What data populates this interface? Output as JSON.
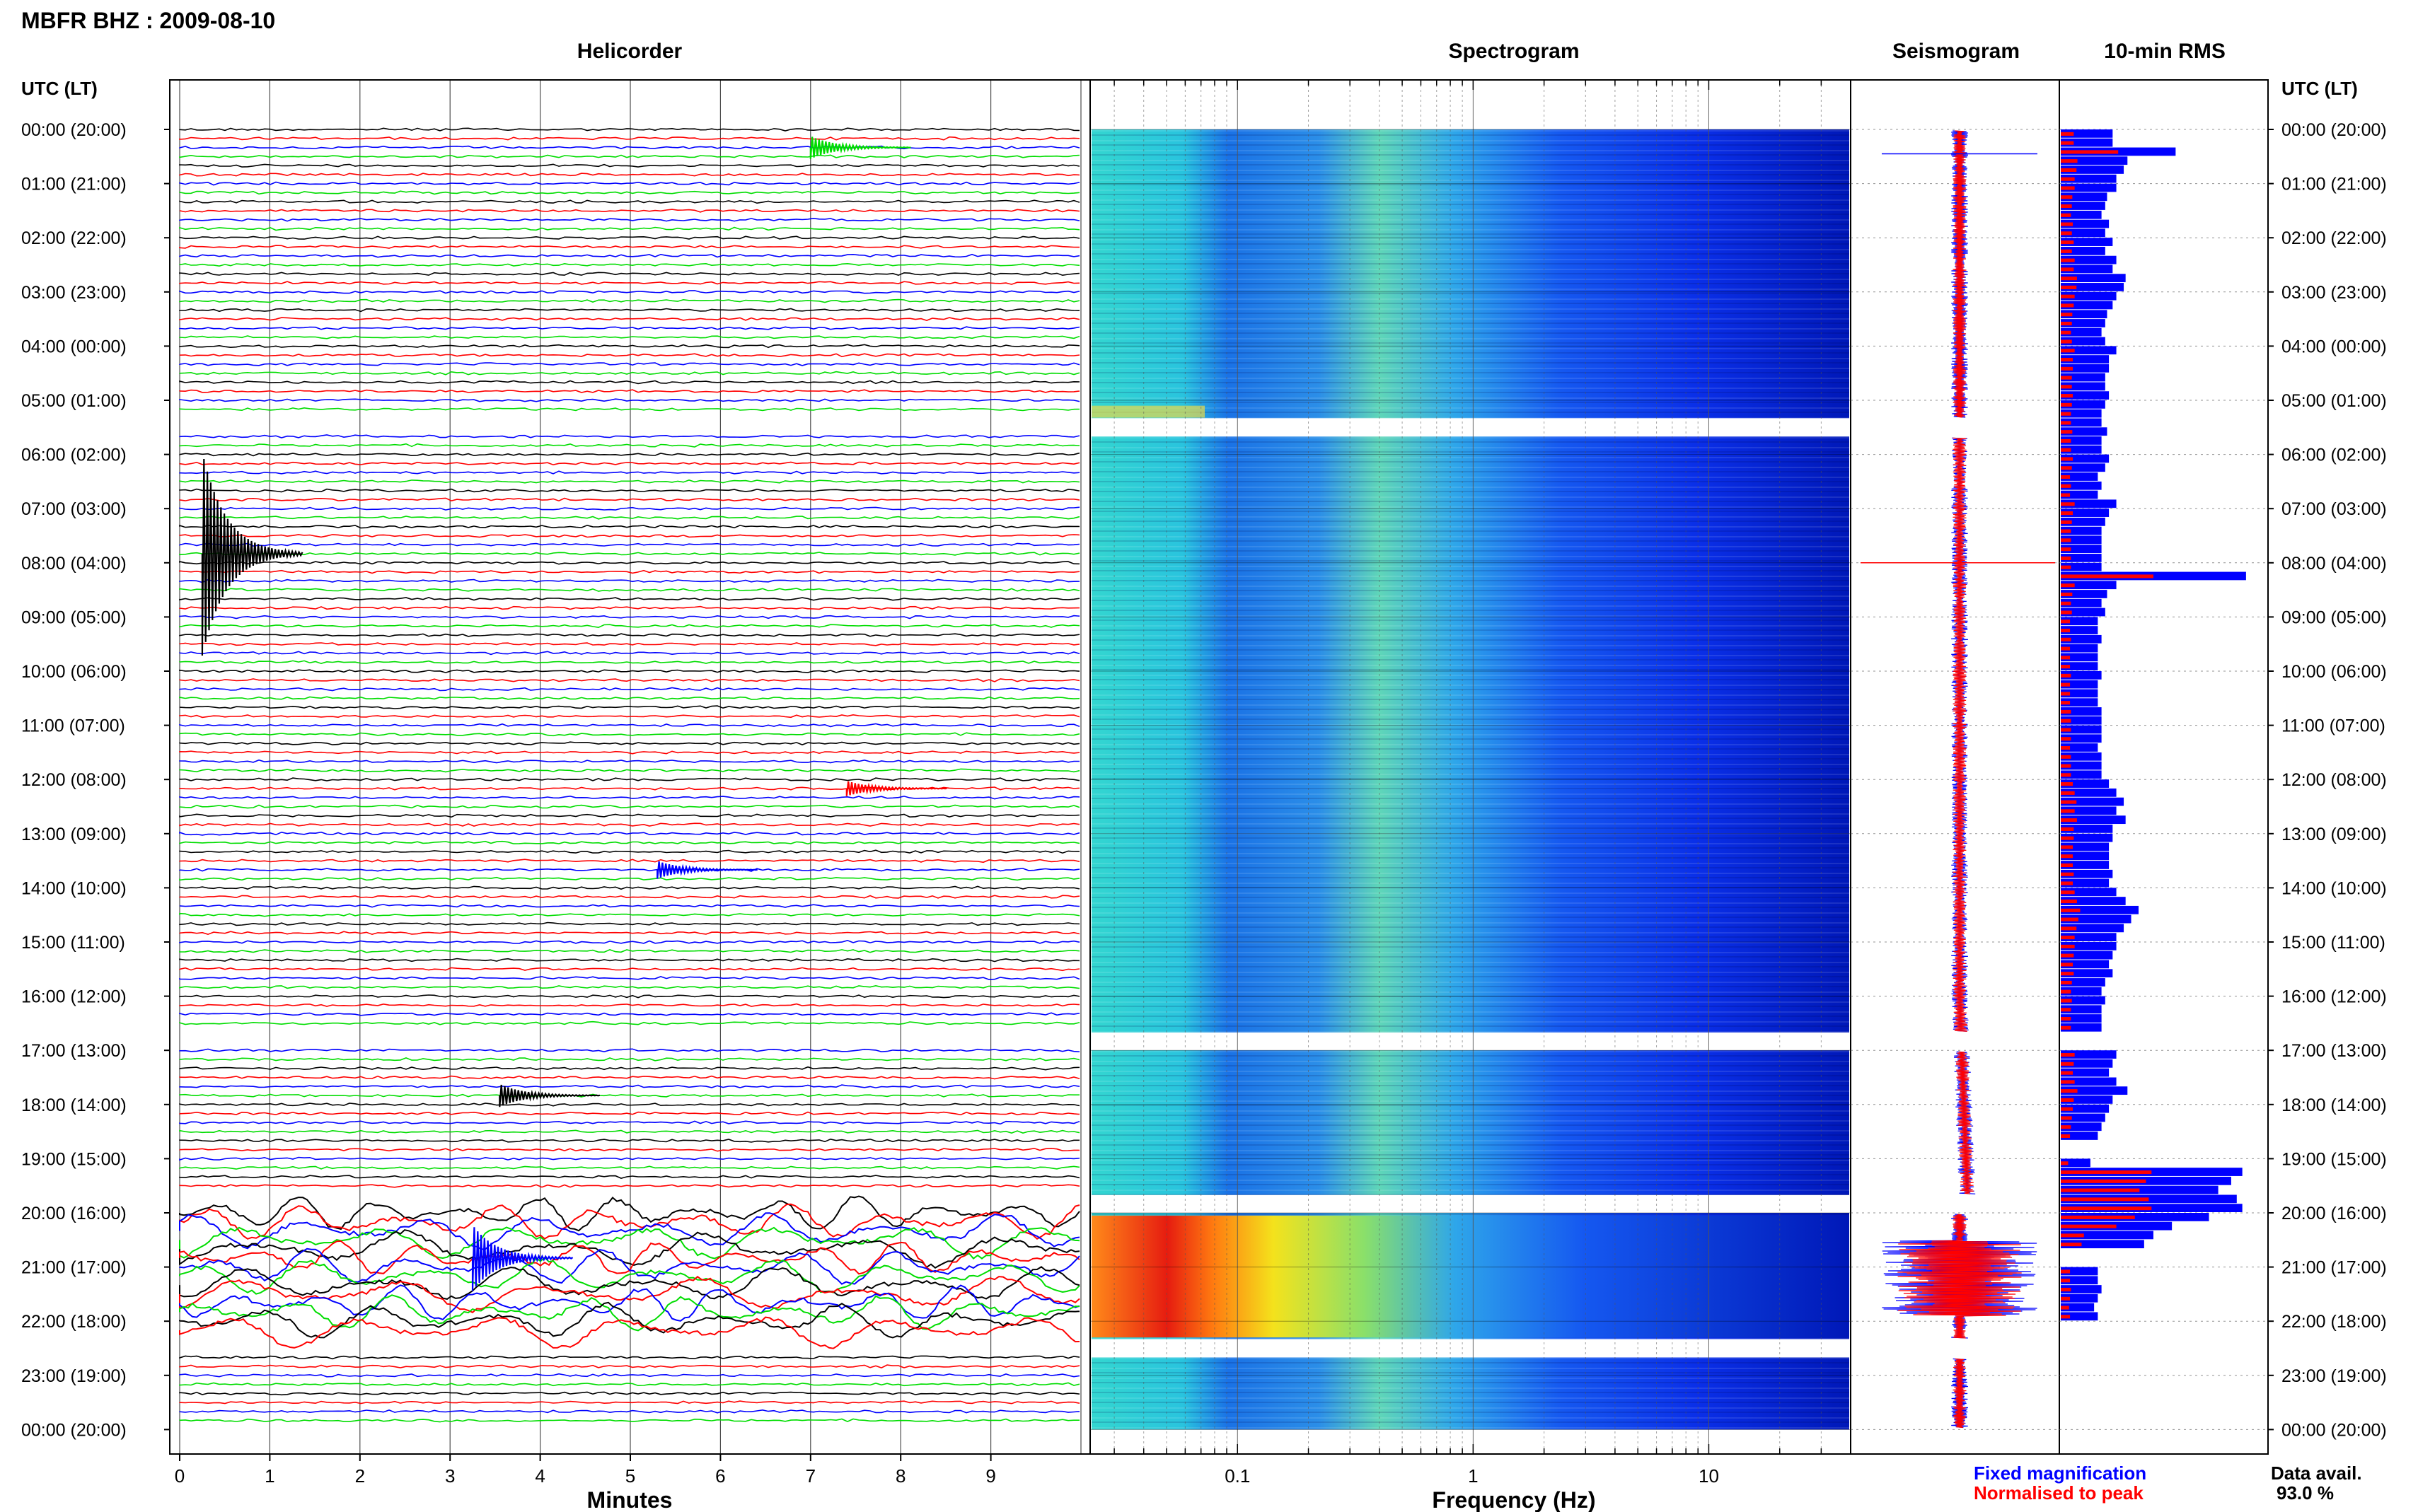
{
  "header": {
    "title": "MBFR BHZ : 2009-08-10"
  },
  "panels": {
    "helicorder": "Helicorder",
    "spectrogram": "Spectrogram",
    "seismogram": "Seismogram",
    "rms": "10-min RMS"
  },
  "axis": {
    "left_label": "UTC (LT)",
    "right_label": "UTC (LT)",
    "helicorder_xlabel": "Minutes",
    "spectrogram_xlabel": "Frequency (Hz)"
  },
  "legend": {
    "fixed": "Fixed magnification",
    "normalised": "Normalised to peak",
    "fixed_color": "#0000ff",
    "normalised_color": "#ff0000"
  },
  "availability": {
    "label": "Data avail.",
    "value": "93.0 %"
  },
  "chart_data": {
    "type": "helicorder",
    "hour_labels": [
      "00:00 (20:00)",
      "01:00 (21:00)",
      "02:00 (22:00)",
      "03:00 (23:00)",
      "04:00 (00:00)",
      "05:00 (01:00)",
      "06:00 (02:00)",
      "07:00 (03:00)",
      "08:00 (04:00)",
      "09:00 (05:00)",
      "10:00 (06:00)",
      "11:00 (07:00)",
      "12:00 (08:00)",
      "13:00 (09:00)",
      "14:00 (10:00)",
      "15:00 (11:00)",
      "16:00 (12:00)",
      "17:00 (13:00)",
      "18:00 (14:00)",
      "19:00 (15:00)",
      "20:00 (16:00)",
      "21:00 (17:00)",
      "22:00 (18:00)",
      "23:00 (19:00)",
      "00:00 (20:00)"
    ],
    "minute_ticks": [
      "0",
      "1",
      "2",
      "3",
      "4",
      "5",
      "6",
      "7",
      "8",
      "9"
    ],
    "frequency_ticks": [
      {
        "label": "0.1",
        "value": 0.1
      },
      {
        "label": "1",
        "value": 1
      },
      {
        "label": "10",
        "value": 10
      }
    ],
    "frequency_range_hz": [
      0.0237,
      40
    ],
    "minutes_range": [
      0,
      10
    ],
    "hours_range": [
      0,
      24
    ],
    "trace_colors": [
      "#000000",
      "#ff0000",
      "#0000ff",
      "#00dd00"
    ],
    "data_gaps_hours": [
      [
        5.33,
        5.67
      ],
      [
        16.67,
        17.0
      ],
      [
        19.67,
        20.0
      ],
      [
        22.33,
        22.67
      ]
    ],
    "events": [
      {
        "hour": 0.33,
        "minute": 7.0,
        "color": "#00dd00",
        "amplitude": 0.9
      },
      {
        "hour": 7.83,
        "minute": 0.25,
        "color": "#000000",
        "amplitude": 8.0
      },
      {
        "hour": 12.17,
        "minute": 7.4,
        "color": "#ff0000",
        "amplitude": 0.6
      },
      {
        "hour": 13.67,
        "minute": 5.3,
        "color": "#0000ff",
        "amplitude": 0.7
      },
      {
        "hour": 17.83,
        "minute": 3.55,
        "color": "#000000",
        "amplitude": 0.9
      },
      {
        "hour": 20.83,
        "minute": 3.25,
        "color": "#0000ff",
        "amplitude": 2.6
      }
    ],
    "rms_fixed": [
      0.28,
      0.28,
      0.62,
      0.36,
      0.34,
      0.3,
      0.3,
      0.25,
      0.24,
      0.22,
      0.26,
      0.24,
      0.28,
      0.24,
      0.3,
      0.28,
      0.35,
      0.34,
      0.3,
      0.28,
      0.25,
      0.24,
      0.22,
      0.24,
      0.3,
      0.26,
      0.26,
      0.24,
      0.24,
      0.26,
      0.24,
      0.22,
      0.22,
      0.25,
      0.22,
      0.22,
      0.26,
      0.24,
      0.2,
      0.22,
      0.2,
      0.3,
      0.26,
      0.24,
      0.22,
      0.22,
      0.22,
      0.22,
      0.22,
      1.0,
      0.3,
      0.25,
      0.22,
      0.24,
      0.2,
      0.2,
      0.22,
      0.2,
      0.2,
      0.2,
      0.22,
      0.2,
      0.2,
      0.2,
      0.22,
      0.22,
      0.22,
      0.22,
      0.2,
      0.22,
      0.22,
      0.22,
      0.26,
      0.3,
      0.34,
      0.3,
      0.35,
      0.28,
      0.28,
      0.26,
      0.26,
      0.26,
      0.28,
      0.26,
      0.3,
      0.35,
      0.42,
      0.38,
      0.34,
      0.3,
      0.3,
      0.28,
      0.26,
      0.28,
      0.24,
      0.22,
      0.24,
      0.22,
      0.22,
      0.22,
      0.0,
      0.0,
      0.3,
      0.28,
      0.26,
      0.3,
      0.36,
      0.28,
      0.26,
      0.24,
      0.22,
      0.2,
      0.0,
      0.0,
      0.16,
      0.98,
      0.92,
      0.85,
      0.95,
      0.98,
      0.8,
      0.6,
      0.5,
      0.45,
      0.0,
      0.0,
      0.2,
      0.2,
      0.22,
      0.2,
      0.18,
      0.2
    ],
    "rms_normalised_scale": 0.5
  }
}
